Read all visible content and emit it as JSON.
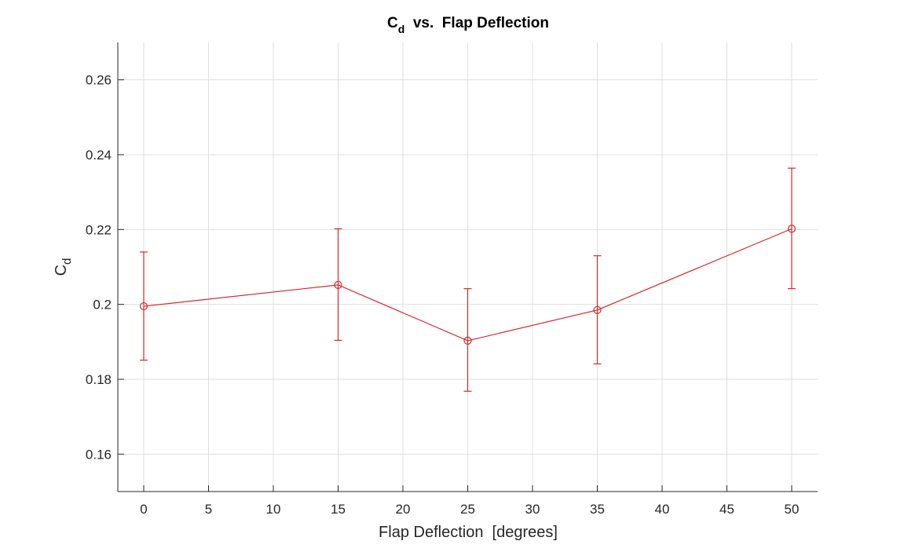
{
  "chart_data": {
    "type": "line",
    "title": {
      "main": "C",
      "sub": "d",
      "rest": "  vs.  Flap Deflection"
    },
    "xlabel": "Flap Deflection  [degrees]",
    "ylabel": {
      "main": "C",
      "sub": "d"
    },
    "xlim": [
      -2,
      52
    ],
    "ylim": [
      0.15,
      0.27
    ],
    "xticks": [
      0,
      5,
      10,
      15,
      20,
      25,
      30,
      35,
      40,
      45,
      50
    ],
    "xtick_labels": [
      "0",
      "5",
      "10",
      "15",
      "20",
      "25",
      "30",
      "35",
      "40",
      "45",
      "50"
    ],
    "yticks": [
      0.16,
      0.18,
      0.2,
      0.22,
      0.24,
      0.26
    ],
    "ytick_labels": [
      "0.16",
      "0.18",
      "0.2",
      "0.22",
      "0.24",
      "0.26"
    ],
    "grid": true,
    "color": "#d62728",
    "series": [
      {
        "x": [
          0,
          15,
          25,
          35,
          50
        ],
        "values": [
          0.1995,
          0.2052,
          0.1903,
          0.1985,
          0.2202
        ],
        "err_low": [
          0.1851,
          0.1904,
          0.1768,
          0.1841,
          0.2042
        ],
        "err_high": [
          0.214,
          0.2202,
          0.2042,
          0.213,
          0.2364
        ]
      }
    ]
  }
}
